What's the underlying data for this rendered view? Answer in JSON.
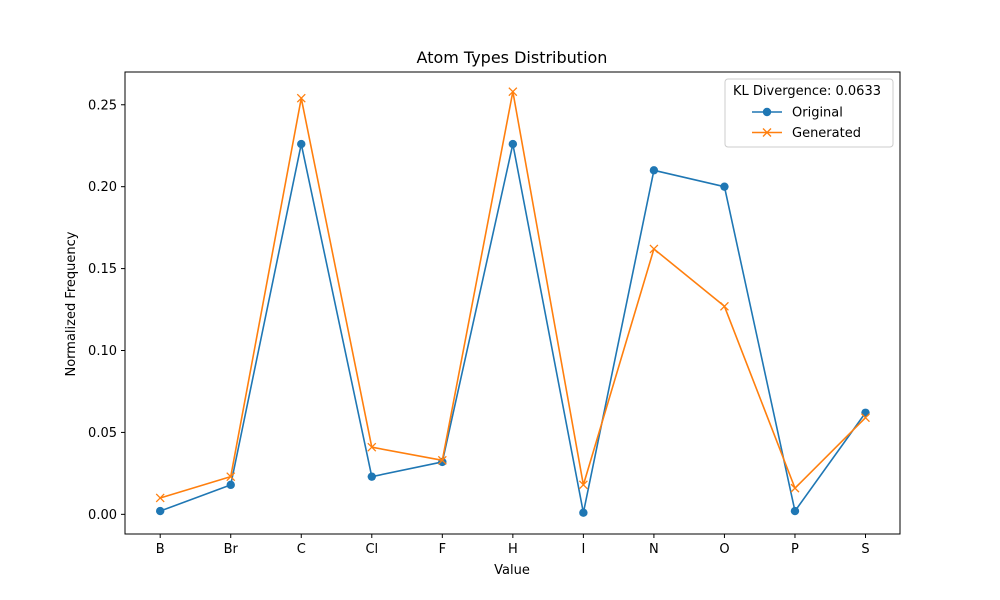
{
  "chart_data": {
    "type": "line",
    "title": "Atom Types Distribution",
    "xlabel": "Value",
    "ylabel": "Normalized Frequency",
    "categories": [
      "B",
      "Br",
      "C",
      "Cl",
      "F",
      "H",
      "I",
      "N",
      "O",
      "P",
      "S"
    ],
    "ylim": [
      -0.012,
      0.27
    ],
    "yticks": [
      0.0,
      0.05,
      0.1,
      0.15,
      0.2,
      0.25
    ],
    "ytick_labels": [
      "0.00",
      "0.05",
      "0.10",
      "0.15",
      "0.20",
      "0.25"
    ],
    "grid": false,
    "legend": {
      "title": "KL Divergence: 0.0633",
      "placement": "top-right"
    },
    "series": [
      {
        "name": "Original",
        "color": "#1f77b4",
        "marker": "circle",
        "values": [
          0.002,
          0.018,
          0.226,
          0.023,
          0.032,
          0.226,
          0.001,
          0.21,
          0.2,
          0.002,
          0.062
        ]
      },
      {
        "name": "Generated",
        "color": "#ff7f0e",
        "marker": "x",
        "values": [
          0.01,
          0.023,
          0.254,
          0.041,
          0.033,
          0.258,
          0.018,
          0.162,
          0.127,
          0.016,
          0.059
        ]
      }
    ]
  }
}
